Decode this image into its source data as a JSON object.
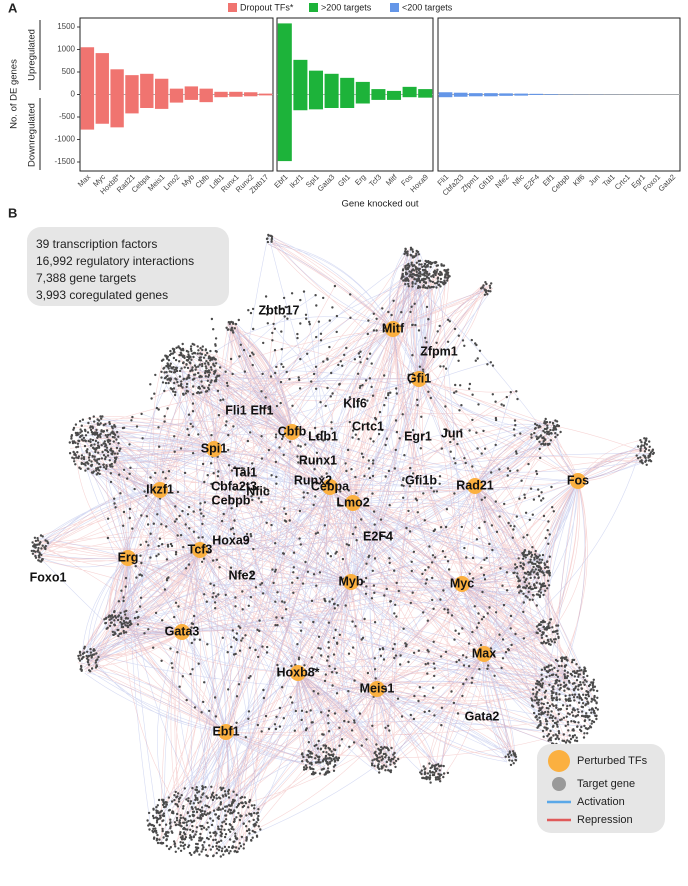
{
  "chart_data": [
    {
      "type": "bar",
      "name": "Dropout TFs*",
      "color": "#f07470",
      "categories": [
        "Max",
        "Myc",
        "Hoxb8*",
        "Rad21",
        "Cebpa",
        "Meis1",
        "Lmo2",
        "Myb",
        "Cbfb",
        "Ldb1",
        "Runx1",
        "Runx2",
        "Zbtb17"
      ],
      "values": [
        1050,
        920,
        560,
        430,
        460,
        350,
        130,
        180,
        130,
        60,
        60,
        50,
        20
      ],
      "values_down": [
        -780,
        -650,
        -730,
        -420,
        -300,
        -320,
        -180,
        -120,
        -170,
        -60,
        -50,
        -40,
        -20
      ],
      "ylim": [
        -1700,
        1700
      ],
      "yticks": [
        -1500,
        -1000,
        -500,
        0,
        500,
        1000,
        1500
      ]
    },
    {
      "type": "bar",
      "name": ">200 targets",
      "color": "#1db33a",
      "categories": [
        "Ebf1",
        "Ikzf1",
        "Spi1",
        "Gata3",
        "Gfi1",
        "Erg",
        "Tcf3",
        "Mitf",
        "Fos",
        "Hoxa9"
      ],
      "values": [
        1580,
        770,
        530,
        460,
        370,
        280,
        120,
        80,
        170,
        120
      ],
      "values_down": [
        -1480,
        -350,
        -330,
        -300,
        -300,
        -200,
        -120,
        -120,
        -60,
        -70
      ]
    },
    {
      "type": "bar",
      "name": "<200 targets",
      "color": "#6496e8",
      "categories": [
        "Fli1",
        "Cbfa2t3",
        "Zfpm1",
        "Gfi1b",
        "Nfe2",
        "Nfic",
        "E2F4",
        "Elf1",
        "Cebpb",
        "Klf6",
        "Jun",
        "Tal1",
        "Crtc1",
        "Egr1",
        "Foxo1",
        "Gata2"
      ],
      "values": [
        50,
        40,
        30,
        30,
        25,
        20,
        15,
        10,
        5,
        3,
        3,
        2,
        2,
        1,
        1,
        1
      ],
      "values_down": [
        -60,
        -50,
        -40,
        -40,
        -30,
        -25,
        -10,
        -5,
        -3,
        -2,
        -2,
        -1,
        -1,
        -1,
        0,
        0
      ]
    }
  ],
  "panel_a": {
    "label": "A",
    "ylabel": "No. of DE genes",
    "ylabel_up": "Upregulated",
    "ylabel_down": "Downregulated",
    "xlabel": "Gene knocked out"
  },
  "panel_b": {
    "label": "B",
    "stats": [
      "39 transcription factors",
      "16,992 regulatory interactions",
      "7,388 gene targets",
      "3,993 coregulated genes"
    ],
    "nodes": [
      {
        "label": "Mitf",
        "perturbed": true
      },
      {
        "label": "Gfi1",
        "perturbed": true
      },
      {
        "label": "Spi1",
        "perturbed": true
      },
      {
        "label": "Ikzf1",
        "perturbed": true
      },
      {
        "label": "Rad21",
        "perturbed": true
      },
      {
        "label": "Cebpa",
        "perturbed": true
      },
      {
        "label": "Lmo2",
        "perturbed": true
      },
      {
        "label": "Erg",
        "perturbed": true
      },
      {
        "label": "Tcf3",
        "perturbed": true
      },
      {
        "label": "Myb",
        "perturbed": true
      },
      {
        "label": "Myc",
        "perturbed": true
      },
      {
        "label": "Gata3",
        "perturbed": true
      },
      {
        "label": "Max",
        "perturbed": true
      },
      {
        "label": "Hoxb8*",
        "perturbed": true
      },
      {
        "label": "Meis1",
        "perturbed": true
      },
      {
        "label": "Ebf1",
        "perturbed": true
      },
      {
        "label": "Fos",
        "perturbed": true
      },
      {
        "label": "Cbfb",
        "perturbed": true
      },
      {
        "label": "Zbtb17",
        "perturbed": false
      },
      {
        "label": "Zfpm1",
        "perturbed": false
      },
      {
        "label": "Klf6",
        "perturbed": false
      },
      {
        "label": "Fli1",
        "perturbed": false
      },
      {
        "label": "Elf1",
        "perturbed": false
      },
      {
        "label": "Crtc1",
        "perturbed": false
      },
      {
        "label": "Ldb1",
        "perturbed": false
      },
      {
        "label": "Egr1",
        "perturbed": false
      },
      {
        "label": "Jun",
        "perturbed": false
      },
      {
        "label": "Runx1",
        "perturbed": false
      },
      {
        "label": "Tal1",
        "perturbed": false
      },
      {
        "label": "Runx2",
        "perturbed": false
      },
      {
        "label": "Cbfa2t3",
        "perturbed": false
      },
      {
        "label": "Nfic",
        "perturbed": false
      },
      {
        "label": "Gfi1b",
        "perturbed": false
      },
      {
        "label": "Cebpb",
        "perturbed": false
      },
      {
        "label": "Hoxa9",
        "perturbed": false
      },
      {
        "label": "E2F4",
        "perturbed": false
      },
      {
        "label": "Nfe2",
        "perturbed": false
      },
      {
        "label": "Foxo1",
        "perturbed": false
      },
      {
        "label": "Gata2",
        "perturbed": false
      }
    ],
    "legend": [
      "Perturbed TFs",
      "Target gene",
      "Activation",
      "Repression"
    ]
  }
}
